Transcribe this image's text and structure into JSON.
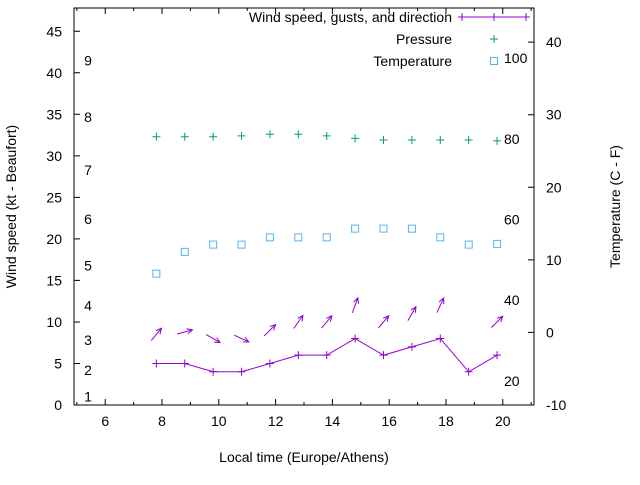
{
  "chart_data": {
    "type": "line",
    "title": "",
    "xlabel": "Local time (Europe/Athens)",
    "x_axis": {
      "ticks": [
        6,
        8,
        10,
        12,
        14,
        16,
        18,
        20
      ],
      "minor_from": 5,
      "minor_to": 21,
      "range": [
        4.9,
        21.1
      ]
    },
    "left_axis": {
      "label": "Wind speed (kt - Beaufort)",
      "ticks": [
        0,
        5,
        10,
        15,
        20,
        25,
        30,
        35,
        40,
        45
      ],
      "range": [
        0,
        47.8
      ],
      "beaufort": [
        {
          "bft": "1",
          "kt": 1.0
        },
        {
          "bft": "2",
          "kt": 4.2
        },
        {
          "bft": "3",
          "kt": 7.8
        },
        {
          "bft": "4",
          "kt": 12.0
        },
        {
          "bft": "5",
          "kt": 16.8
        },
        {
          "bft": "6",
          "kt": 22.4
        },
        {
          "bft": "7",
          "kt": 28.3
        },
        {
          "bft": "8",
          "kt": 34.7
        },
        {
          "bft": "9",
          "kt": 41.5
        }
      ]
    },
    "right_axis": {
      "label": "Temperature (C - F)",
      "ticks": [
        -10,
        0,
        10,
        20,
        30,
        40
      ],
      "range": [
        -10,
        44.7
      ],
      "fahrenheit": [
        {
          "f": "20",
          "c": -6.67
        },
        {
          "f": "40",
          "c": 4.44
        },
        {
          "f": "60",
          "c": 15.56
        },
        {
          "f": "80",
          "c": 26.67
        },
        {
          "f": "100",
          "c": 37.78
        }
      ]
    },
    "x": [
      7.8,
      8.8,
      9.8,
      10.8,
      11.8,
      12.8,
      13.8,
      14.8,
      15.8,
      16.8,
      17.8,
      18.8,
      19.8
    ],
    "series": [
      {
        "name": "Wind speed, gusts, and direction",
        "type": "line+points",
        "marker": "plus",
        "color": "#9400d3",
        "axis": "left",
        "values": [
          5,
          5,
          4,
          4,
          5,
          6,
          6,
          8,
          6,
          7,
          8,
          4,
          6
        ],
        "gusts": [
          8.5,
          8.8,
          8,
          8,
          9,
          10,
          10,
          12,
          10,
          11,
          12,
          null,
          10
        ],
        "directions_deg": [
          50,
          15,
          -30,
          -25,
          45,
          55,
          50,
          70,
          50,
          60,
          65,
          null,
          45
        ]
      },
      {
        "name": "Pressure",
        "type": "points",
        "marker": "plus",
        "color": "#009e73",
        "axis": "left",
        "values": [
          32.3,
          32.3,
          32.3,
          32.4,
          32.6,
          32.6,
          32.4,
          32.1,
          31.9,
          31.9,
          31.9,
          31.9,
          31.8
        ]
      },
      {
        "name": "Temperature",
        "type": "points",
        "marker": "square-open",
        "color": "#56b4e9",
        "axis": "right",
        "values": [
          8.1,
          11.1,
          12.1,
          12.1,
          13.1,
          13.1,
          13.1,
          14.3,
          14.3,
          14.3,
          13.1,
          12.1,
          12.2
        ]
      }
    ],
    "legend": {
      "position": "top-right-inside",
      "entries": [
        "Wind speed, gusts, and direction",
        "Pressure",
        "Temperature"
      ]
    }
  }
}
